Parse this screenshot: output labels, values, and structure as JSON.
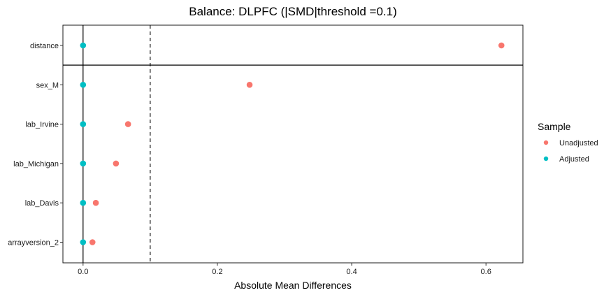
{
  "chart_data": {
    "type": "scatter",
    "title": "Balance: DLPFC (|SMD|threshold =0.1)",
    "xlabel": "Absolute Mean Differences",
    "ylabel": "",
    "xlim": [
      -0.03,
      0.655
    ],
    "x_ticks": [
      "0.0",
      "0.2",
      "0.4",
      "0.6"
    ],
    "x_tick_values": [
      0.0,
      0.2,
      0.4,
      0.6
    ],
    "threshold": 0.1,
    "categories": [
      "distance",
      "sex_M",
      "lab_Irvine",
      "lab_Michigan",
      "lab_Davis",
      "arrayversion_2"
    ],
    "series": [
      {
        "name": "Unadjusted",
        "color": "#F8766D",
        "values": [
          0.623,
          0.248,
          0.067,
          0.049,
          0.019,
          0.014
        ]
      },
      {
        "name": "Adjusted",
        "color": "#00BFC4",
        "values": [
          0.0,
          0.0,
          0.0,
          0.0,
          0.0,
          0.0
        ]
      }
    ],
    "legend": {
      "title": "Sample",
      "position": "right"
    },
    "grid": false
  }
}
